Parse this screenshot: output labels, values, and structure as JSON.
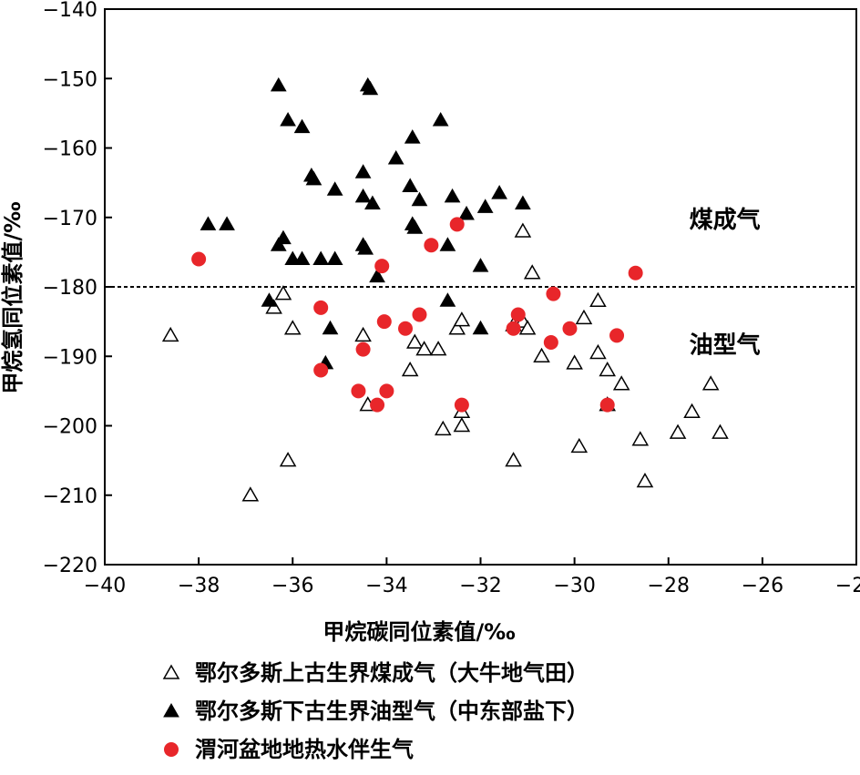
{
  "chart_data": {
    "type": "scatter",
    "title": "",
    "xlabel": "甲烷碳同位素值/‰",
    "ylabel": "甲烷氢同位素值/‰",
    "xlim": [
      -40,
      -24
    ],
    "ylim": [
      -220,
      -140
    ],
    "x_ticks": [
      -40,
      -38,
      -36,
      -34,
      -32,
      -30,
      -28,
      -26,
      -24
    ],
    "y_ticks": [
      -140,
      -150,
      -160,
      -170,
      -180,
      -190,
      -200,
      -210,
      -220
    ],
    "x_tick_labels": [
      "−40",
      "−38",
      "−36",
      "−34",
      "−32",
      "−30",
      "−28",
      "−26",
      "−24"
    ],
    "y_tick_labels": [
      "−140",
      "−150",
      "−160",
      "−170",
      "−180",
      "−190",
      "−200",
      "−210",
      "−220"
    ],
    "grid": false,
    "reference_line": {
      "y": -180,
      "style": "dashed"
    },
    "zone_labels": [
      {
        "text": "煤成气",
        "x": -26.8,
        "y": -171.5
      },
      {
        "text": "油型气",
        "x": -26.8,
        "y": -189.5
      }
    ],
    "legend_position": "bottom",
    "series": [
      {
        "name": "鄂尔多斯上古生界煤成气（大牛地气田）",
        "marker": "triangle-open",
        "color": "#000000",
        "points": [
          [
            -38.6,
            -187.0
          ],
          [
            -36.9,
            -210.0
          ],
          [
            -36.4,
            -183.0
          ],
          [
            -36.2,
            -181.0
          ],
          [
            -36.1,
            -205.0
          ],
          [
            -36.0,
            -186.0
          ],
          [
            -34.5,
            -187.0
          ],
          [
            -34.4,
            -197.0
          ],
          [
            -33.5,
            -192.0
          ],
          [
            -33.4,
            -188.0
          ],
          [
            -33.2,
            -189.0
          ],
          [
            -32.9,
            -189.0
          ],
          [
            -32.8,
            -200.5
          ],
          [
            -32.5,
            -186.0
          ],
          [
            -32.4,
            -184.8
          ],
          [
            -32.4,
            -198.0
          ],
          [
            -32.4,
            -200.0
          ],
          [
            -31.3,
            -185.5
          ],
          [
            -31.3,
            -205.0
          ],
          [
            -31.1,
            -172.0
          ],
          [
            -31.1,
            -185.0
          ],
          [
            -31.0,
            -186.0
          ],
          [
            -30.9,
            -178.0
          ],
          [
            -30.7,
            -190.0
          ],
          [
            -30.0,
            -191.0
          ],
          [
            -29.9,
            -203.0
          ],
          [
            -29.8,
            -184.5
          ],
          [
            -29.5,
            -189.5
          ],
          [
            -29.5,
            -182.0
          ],
          [
            -29.3,
            -192.0
          ],
          [
            -29.3,
            -197.0
          ],
          [
            -29.0,
            -194.0
          ],
          [
            -28.6,
            -202.0
          ],
          [
            -28.5,
            -208.0
          ],
          [
            -27.8,
            -201.0
          ],
          [
            -27.5,
            -198.0
          ],
          [
            -27.1,
            -194.0
          ],
          [
            -26.9,
            -201.0
          ]
        ]
      },
      {
        "name": "鄂尔多斯下古生界油型气（中东部盐下）",
        "marker": "triangle-filled",
        "color": "#000000",
        "points": [
          [
            -37.8,
            -171.0
          ],
          [
            -37.4,
            -171.0
          ],
          [
            -36.5,
            -182.0
          ],
          [
            -36.3,
            -174.0
          ],
          [
            -36.3,
            -151.0
          ],
          [
            -36.2,
            -173.0
          ],
          [
            -36.1,
            -156.0
          ],
          [
            -36.0,
            -176.0
          ],
          [
            -35.8,
            -176.0
          ],
          [
            -35.8,
            -157.0
          ],
          [
            -35.6,
            -164.0
          ],
          [
            -35.55,
            -164.5
          ],
          [
            -35.4,
            -176.0
          ],
          [
            -35.3,
            -191.0
          ],
          [
            -35.2,
            -186.0
          ],
          [
            -35.1,
            -166.0
          ],
          [
            -35.1,
            -176.0
          ],
          [
            -34.5,
            -163.5
          ],
          [
            -34.5,
            -167.0
          ],
          [
            -34.5,
            -174.0
          ],
          [
            -34.45,
            -174.5
          ],
          [
            -34.4,
            -151.0
          ],
          [
            -34.35,
            -151.5
          ],
          [
            -34.3,
            -168.0
          ],
          [
            -34.2,
            -178.5
          ],
          [
            -33.8,
            -161.5
          ],
          [
            -33.5,
            -165.5
          ],
          [
            -33.45,
            -158.5
          ],
          [
            -33.45,
            -171.0
          ],
          [
            -33.4,
            -171.5
          ],
          [
            -33.3,
            -167.5
          ],
          [
            -32.85,
            -156.0
          ],
          [
            -32.7,
            -174.0
          ],
          [
            -32.7,
            -182.0
          ],
          [
            -32.6,
            -167.0
          ],
          [
            -32.3,
            -169.5
          ],
          [
            -32.0,
            -177.0
          ],
          [
            -32.0,
            -186.0
          ],
          [
            -31.9,
            -168.5
          ],
          [
            -31.6,
            -166.5
          ],
          [
            -31.1,
            -168.0
          ]
        ]
      },
      {
        "name": "渭河盆地地热水伴生气",
        "marker": "circle-filled",
        "color": "#e8262a",
        "points": [
          [
            -38.0,
            -176.0
          ],
          [
            -35.4,
            -183.0
          ],
          [
            -35.4,
            -192.0
          ],
          [
            -34.6,
            -195.0
          ],
          [
            -34.5,
            -189.0
          ],
          [
            -34.2,
            -197.0
          ],
          [
            -34.1,
            -177.0
          ],
          [
            -34.05,
            -185.0
          ],
          [
            -34.0,
            -195.0
          ],
          [
            -33.6,
            -186.0
          ],
          [
            -33.3,
            -184.0
          ],
          [
            -33.05,
            -174.0
          ],
          [
            -32.5,
            -171.0
          ],
          [
            -32.4,
            -197.0
          ],
          [
            -31.3,
            -186.0
          ],
          [
            -31.2,
            -184.0
          ],
          [
            -30.5,
            -188.0
          ],
          [
            -30.45,
            -181.0
          ],
          [
            -30.1,
            -186.0
          ],
          [
            -29.3,
            -197.0
          ],
          [
            -29.1,
            -187.0
          ],
          [
            -28.7,
            -178.0
          ]
        ]
      }
    ]
  }
}
